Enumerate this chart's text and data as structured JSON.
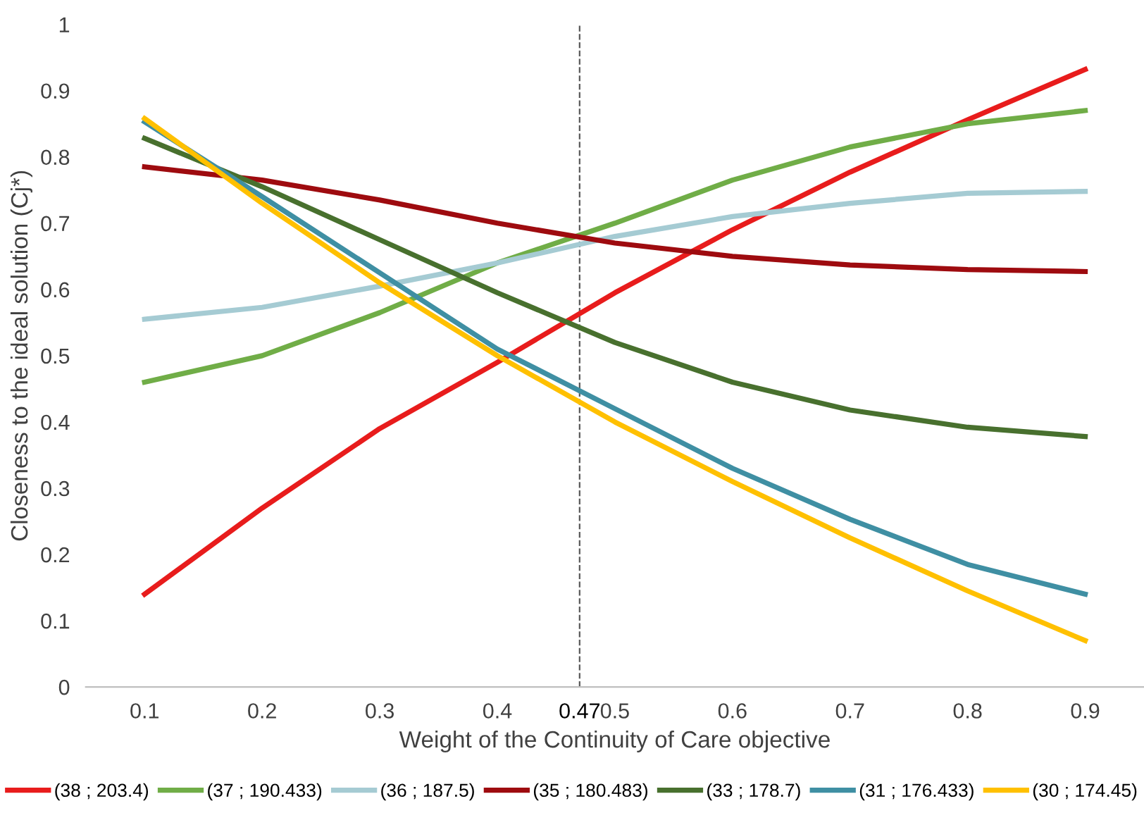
{
  "chart_data": {
    "type": "line",
    "xlabel": "Weight of the Continuity of Care objective",
    "ylabel": "Closeness to the ideal solution (Cj*)",
    "x": [
      0.1,
      0.2,
      0.3,
      0.4,
      0.5,
      0.6,
      0.7,
      0.8,
      0.9
    ],
    "xlim": [
      0.05,
      0.95
    ],
    "xticks": [
      0.1,
      0.2,
      0.3,
      0.4,
      0.5,
      0.6,
      0.7,
      0.8,
      0.9
    ],
    "ylim": [
      0,
      1
    ],
    "yticks": [
      0,
      0.1,
      0.2,
      0.3,
      0.4,
      0.5,
      0.6,
      0.7,
      0.8,
      0.9,
      1
    ],
    "series": [
      {
        "name": "(38 ; 203.4)",
        "color": "#e81c1c",
        "values": [
          0.14,
          0.27,
          0.39,
          0.49,
          0.595,
          0.69,
          0.777,
          0.856,
          0.932
        ]
      },
      {
        "name": "(37 ; 190.433)",
        "color": "#70ad47",
        "values": [
          0.46,
          0.5,
          0.565,
          0.64,
          0.7,
          0.765,
          0.815,
          0.85,
          0.87
        ]
      },
      {
        "name": "(36 ; 187.5)",
        "color": "#a5cbd3",
        "values": [
          0.555,
          0.573,
          0.605,
          0.64,
          0.68,
          0.71,
          0.73,
          0.745,
          0.748
        ]
      },
      {
        "name": "(35 ; 180.483)",
        "color": "#9e0b0f",
        "values": [
          0.785,
          0.765,
          0.735,
          0.7,
          0.67,
          0.65,
          0.637,
          0.63,
          0.627
        ]
      },
      {
        "name": "(33 ; 178.7)",
        "color": "#48702e",
        "values": [
          0.828,
          0.755,
          0.675,
          0.595,
          0.52,
          0.46,
          0.418,
          0.392,
          0.378
        ]
      },
      {
        "name": "(31 ; 176.433)",
        "color": "#3f8fa3",
        "values": [
          0.853,
          0.74,
          0.625,
          0.51,
          0.42,
          0.33,
          0.253,
          0.185,
          0.14
        ]
      },
      {
        "name": "(30 ; 174.45)",
        "color": "#ffc000",
        "values": [
          0.858,
          0.73,
          0.61,
          0.5,
          0.4,
          0.31,
          0.225,
          0.145,
          0.07
        ]
      }
    ],
    "ref_lines": [
      {
        "axis": "x",
        "value": 0.47,
        "label": "0.47",
        "color": "#595959",
        "line_style": "dashed"
      }
    ],
    "grid": false,
    "legend": "bottom",
    "marker": "none",
    "line_style": "solid"
  }
}
